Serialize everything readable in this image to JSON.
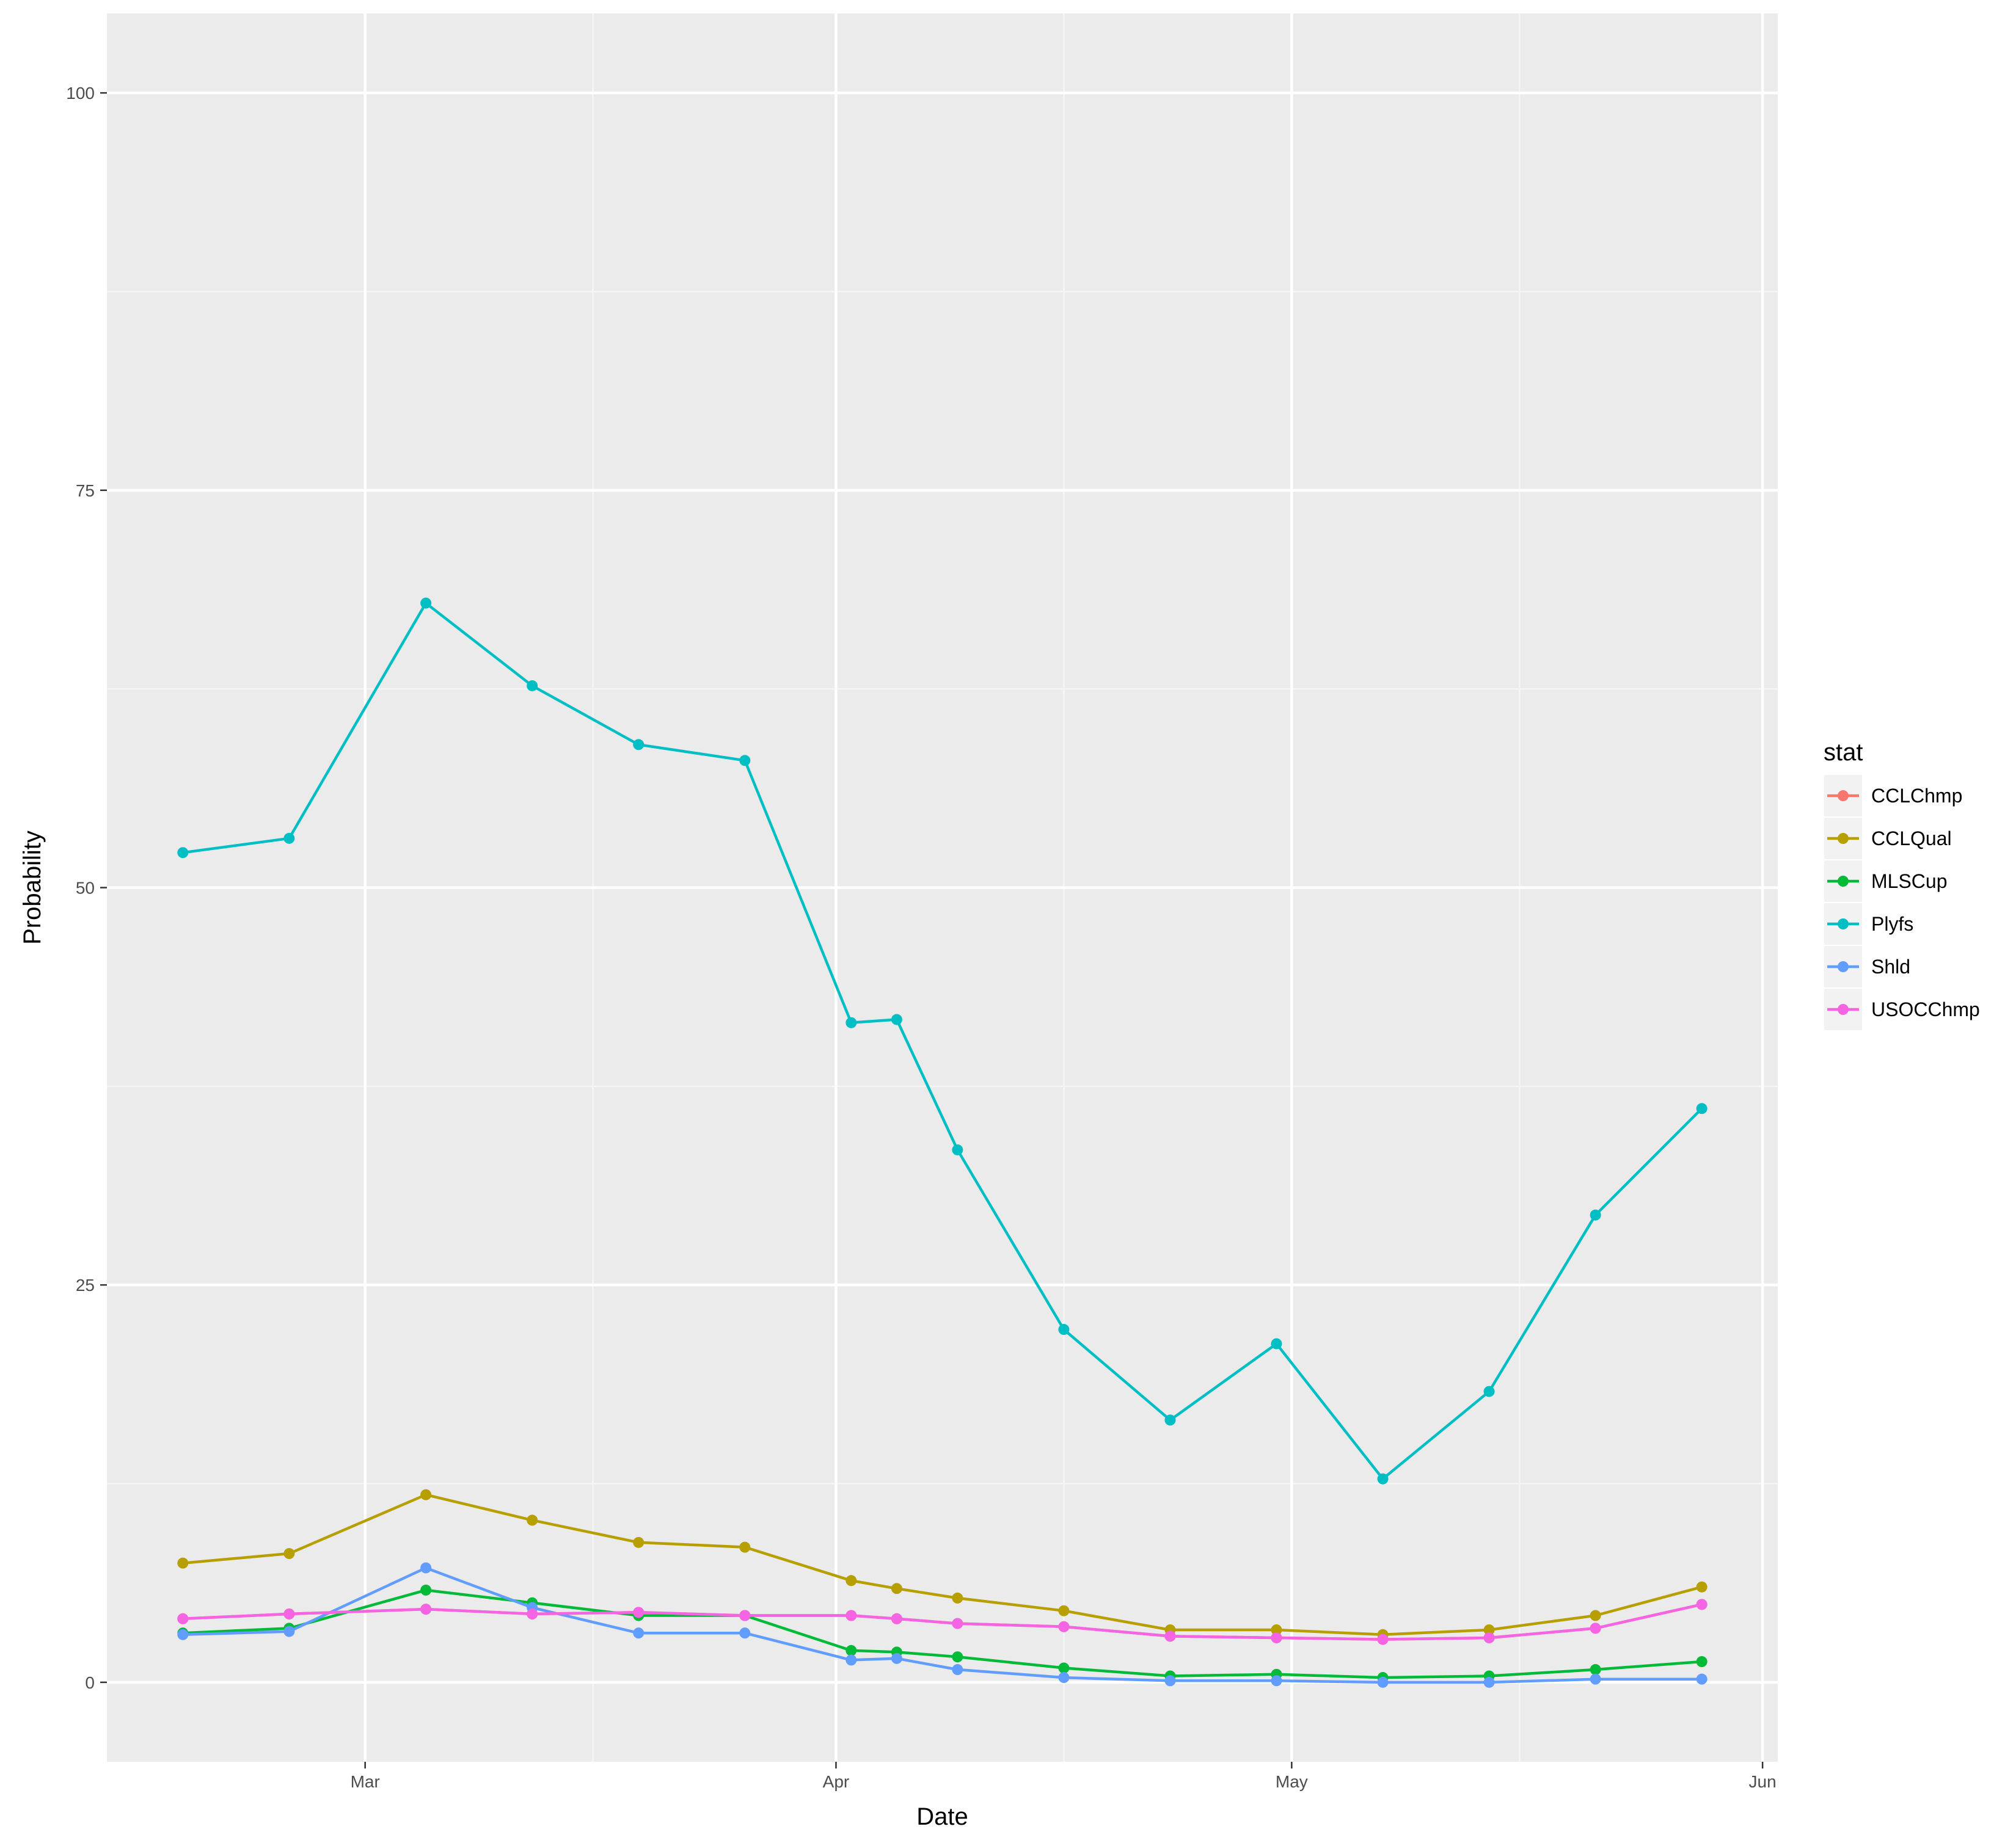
{
  "chart_data": {
    "type": "line",
    "xlabel": "Date",
    "ylabel": "Probability",
    "x_tick_labels": [
      "Mar",
      "Apr",
      "May",
      "Jun"
    ],
    "y_tick_labels": [
      "0",
      "25",
      "50",
      "75",
      "100"
    ],
    "y_ticks": [
      0,
      25,
      50,
      75,
      100
    ],
    "ylim": [
      -5,
      105
    ],
    "grid": true,
    "legend_title": "stat",
    "legend_position": "right",
    "x": [
      "2016-02-18",
      "2016-02-25",
      "2016-03-05",
      "2016-03-12",
      "2016-03-19",
      "2016-03-26",
      "2016-04-02",
      "2016-04-05",
      "2016-04-09",
      "2016-04-16",
      "2016-04-23",
      "2016-04-30",
      "2016-05-07",
      "2016-05-14",
      "2016-05-21",
      "2016-05-28"
    ],
    "series": [
      {
        "name": "CCLChmp",
        "color": "#F8766D",
        "values": [
          4.0,
          4.3,
          4.6,
          4.3,
          4.4,
          4.2,
          4.2,
          4.0,
          3.7,
          3.5,
          2.9,
          2.8,
          2.7,
          2.8,
          3.4,
          4.9
        ]
      },
      {
        "name": "CCLQual",
        "color": "#B79F00",
        "values": [
          7.5,
          8.1,
          11.8,
          10.2,
          8.8,
          8.5,
          6.4,
          5.9,
          5.3,
          4.5,
          3.3,
          3.3,
          3.0,
          3.3,
          4.2,
          6.0
        ]
      },
      {
        "name": "MLSCup",
        "color": "#00BA38",
        "values": [
          3.1,
          3.4,
          5.8,
          5.0,
          4.2,
          4.2,
          2.0,
          1.9,
          1.6,
          0.9,
          0.4,
          0.5,
          0.3,
          0.4,
          0.8,
          1.3
        ]
      },
      {
        "name": "Plyfs",
        "color": "#00BFC4",
        "values": [
          52.2,
          53.1,
          67.9,
          62.7,
          59.0,
          58.0,
          41.5,
          41.7,
          33.5,
          22.2,
          16.5,
          21.3,
          12.8,
          18.3,
          29.4,
          36.1
        ]
      },
      {
        "name": "Shld",
        "color": "#619CFF",
        "values": [
          3.0,
          3.2,
          7.2,
          4.7,
          3.1,
          3.1,
          1.4,
          1.5,
          0.8,
          0.3,
          0.1,
          0.1,
          0.0,
          0.0,
          0.2,
          0.2
        ]
      },
      {
        "name": "USOCChmp",
        "color": "#F564E3",
        "values": [
          4.0,
          4.3,
          4.6,
          4.3,
          4.4,
          4.2,
          4.2,
          4.0,
          3.7,
          3.5,
          2.9,
          2.8,
          2.7,
          2.8,
          3.4,
          4.9
        ]
      }
    ]
  },
  "colors": {
    "panel_background": "#EBEBEB",
    "grid_major": "#FFFFFF",
    "grid_minor": "#F5F5F5",
    "tick_color": "#333333"
  }
}
